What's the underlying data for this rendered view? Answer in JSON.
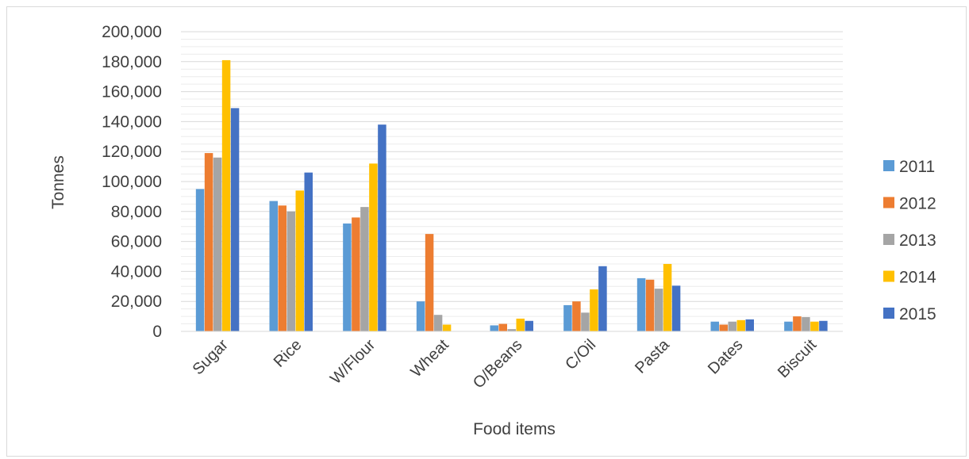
{
  "chart_data": {
    "type": "bar",
    "title": "",
    "xlabel": "Food items",
    "ylabel": "Tonnes",
    "ylim": [
      0,
      200000
    ],
    "yticks": [
      "0",
      "20,000",
      "40,000",
      "60,000",
      "80,000",
      "100,000",
      "120,000",
      "140,000",
      "160,000",
      "180,000",
      "200,000"
    ],
    "categories": [
      "Sugar",
      "Rice",
      "W/Flour",
      "Wheat",
      "O/Beans",
      "C/Oil",
      "Pasta",
      "Dates",
      "Biscuit"
    ],
    "series": [
      {
        "name": "2011",
        "color": "#5b9bd5",
        "values": [
          95000,
          87000,
          72000,
          20000,
          4000,
          17500,
          35500,
          6500,
          6500
        ]
      },
      {
        "name": "2012",
        "color": "#ed7d31",
        "values": [
          119000,
          84000,
          76000,
          65000,
          5000,
          20000,
          34500,
          4500,
          10000
        ]
      },
      {
        "name": "2013",
        "color": "#a5a5a5",
        "values": [
          116000,
          80000,
          83000,
          11000,
          1500,
          12500,
          28500,
          6500,
          9500
        ]
      },
      {
        "name": "2014",
        "color": "#ffc000",
        "values": [
          181000,
          94000,
          112000,
          4500,
          8500,
          28000,
          45000,
          7500,
          6500
        ]
      },
      {
        "name": "2015",
        "color": "#4472c4",
        "values": [
          149000,
          106000,
          138000,
          0,
          7000,
          43500,
          30500,
          8000,
          7000
        ]
      }
    ],
    "grid": true,
    "legend": "right"
  }
}
